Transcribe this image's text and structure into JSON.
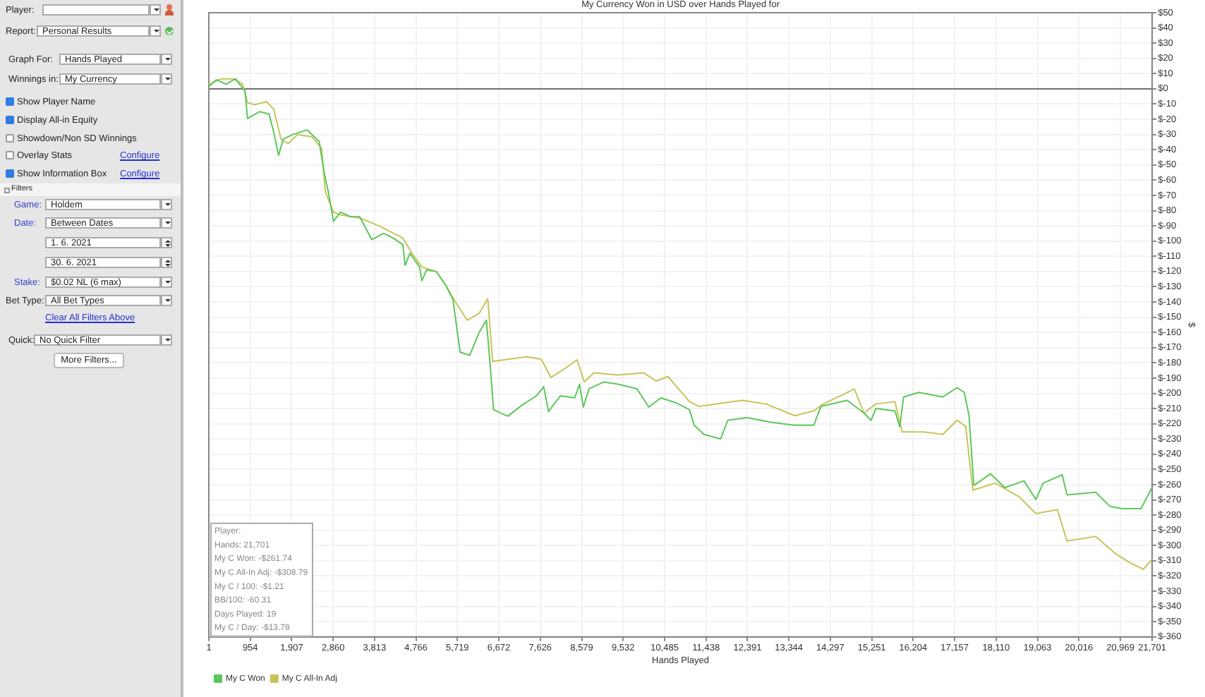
{
  "chart_data": {
    "type": "line",
    "title": "My Currency Won in USD over Hands Played for",
    "xlabel": "Hands Played",
    "ylabel": "$",
    "xlim": [
      1,
      21701
    ],
    "xticks": [
      1,
      954,
      {
        "value": 1907,
        "label": "1,907"
      },
      {
        "value": 2860,
        "label": "2,860"
      },
      {
        "value": 3813,
        "label": "3,813"
      },
      {
        "value": 4766,
        "label": "4,766"
      },
      {
        "value": 5719,
        "label": "5,719"
      },
      {
        "value": 6672,
        "label": "6,672"
      },
      {
        "value": 7626,
        "label": "7,626"
      },
      {
        "value": 8579,
        "label": "8,579"
      },
      {
        "value": 9532,
        "label": "9,532"
      },
      {
        "value": 10485,
        "label": "10,485"
      },
      {
        "value": 11438,
        "label": "11,438"
      },
      {
        "value": 12391,
        "label": "12,391"
      },
      {
        "value": 13344,
        "label": "13,344"
      },
      {
        "value": 14297,
        "label": "14,297"
      },
      {
        "value": 15251,
        "label": "15,251"
      },
      {
        "value": 16204,
        "label": "16,204"
      },
      {
        "value": 17157,
        "label": "17,157"
      },
      {
        "value": 18110,
        "label": "18,110"
      },
      {
        "value": 19063,
        "label": "19,063"
      },
      {
        "value": 20016,
        "label": "20,016"
      },
      {
        "value": 20969,
        "label": "20,969"
      },
      {
        "value": 21701,
        "label": "21,701"
      }
    ],
    "ylim": [
      -360,
      50
    ],
    "yticks": [
      {
        "value": 50,
        "label": "$50"
      },
      {
        "value": 40,
        "label": "$40"
      },
      {
        "value": 30,
        "label": "$30"
      },
      {
        "value": 20,
        "label": "$20"
      },
      {
        "value": 10,
        "label": "$10"
      },
      {
        "value": 0,
        "label": "$0"
      },
      {
        "value": -10,
        "label": "$-10"
      },
      {
        "value": -20,
        "label": "$-20"
      },
      {
        "value": -30,
        "label": "$-30"
      },
      {
        "value": -40,
        "label": "$-40"
      },
      {
        "value": -50,
        "label": "$-50"
      },
      {
        "value": -60,
        "label": "$-60"
      },
      {
        "value": -70,
        "label": "$-70"
      },
      {
        "value": -80,
        "label": "$-80"
      },
      {
        "value": -90,
        "label": "$-90"
      },
      {
        "value": -100,
        "label": "$-100"
      },
      {
        "value": -110,
        "label": "$-110"
      },
      {
        "value": -120,
        "label": "$-120"
      },
      {
        "value": -130,
        "label": "$-130"
      },
      {
        "value": -140,
        "label": "$-140"
      },
      {
        "value": -150,
        "label": "$-150"
      },
      {
        "value": -160,
        "label": "$-160"
      },
      {
        "value": -170,
        "label": "$-170"
      },
      {
        "value": -180,
        "label": "$-180"
      },
      {
        "value": -190,
        "label": "$-190"
      },
      {
        "value": -200,
        "label": "$-200"
      },
      {
        "value": -210,
        "label": "$-210"
      },
      {
        "value": -220,
        "label": "$-220"
      },
      {
        "value": -230,
        "label": "$-230"
      },
      {
        "value": -240,
        "label": "$-240"
      },
      {
        "value": -250,
        "label": "$-250"
      },
      {
        "value": -260,
        "label": "$-260"
      },
      {
        "value": -270,
        "label": "$-270"
      },
      {
        "value": -280,
        "label": "$-280"
      },
      {
        "value": -290,
        "label": "$-290"
      },
      {
        "value": -300,
        "label": "$-300"
      },
      {
        "value": -310,
        "label": "$-310"
      },
      {
        "value": -320,
        "label": "$-320"
      },
      {
        "value": -330,
        "label": "$-330"
      },
      {
        "value": -340,
        "label": "$-340"
      },
      {
        "value": -350,
        "label": "$-350"
      },
      {
        "value": -360,
        "label": "$-360"
      }
    ],
    "grid": true,
    "legend": "bottom",
    "ref_lines": [
      {
        "axis": "y",
        "value": 0,
        "color": "#707070"
      }
    ],
    "series": [
      {
        "name": "My C Won",
        "color": "#5cc85a",
        "x": [
          1,
          176,
          396,
          615,
          725,
          835,
          890,
          1165,
          1385,
          1495,
          1605,
          1714,
          1934,
          2264,
          2539,
          2648,
          2758,
          2868,
          3033,
          3253,
          3473,
          3747,
          4022,
          4242,
          4462,
          4517,
          4627,
          4847,
          4902,
          5011,
          5231,
          5451,
          5616,
          5781,
          6001,
          6220,
          6385,
          6462,
          6550,
          6770,
          6880,
          7209,
          7539,
          7704,
          7814,
          8089,
          8418,
          8528,
          8616,
          8748,
          9078,
          9407,
          9847,
          10122,
          10397,
          10726,
          11056,
          11166,
          11389,
          11773,
          11938,
          12378,
          12927,
          13477,
          13916,
          14081,
          14686,
          15070,
          15235,
          15345,
          15785,
          15895,
          15983,
          16334,
          16884,
          17213,
          17378,
          17488,
          17598,
          17983,
          18312,
          18752,
          19027,
          19192,
          19631,
          19741,
          20400,
          20730,
          21005,
          21444,
          21664,
          21701
        ],
        "values": [
          1.5,
          6,
          3,
          6.6,
          2.4,
          -1.5,
          -19.5,
          -15,
          -16.5,
          -28.6,
          -43.6,
          -33,
          -30,
          -27,
          -34.6,
          -54,
          -69,
          -87,
          -81,
          -84,
          -84,
          -99,
          -95,
          -98,
          -102.3,
          -115.9,
          -108,
          -117,
          -126,
          -119,
          -120,
          -129,
          -138.4,
          -173,
          -175,
          -160,
          -152,
          -177.6,
          -210.7,
          -213.7,
          -215,
          -207.7,
          -201.6,
          -195.6,
          -212,
          -201.6,
          -203,
          -194,
          -209,
          -197,
          -192.6,
          -194,
          -197,
          -209,
          -203,
          -206,
          -210.7,
          -221,
          -227,
          -230,
          -217.7,
          -216,
          -219,
          -221,
          -221,
          -208.6,
          -204.6,
          -213,
          -217.7,
          -210,
          -211.6,
          -222,
          -202.4,
          -199.4,
          -202.4,
          -196.3,
          -199.4,
          -214.7,
          -260.5,
          -252.9,
          -262,
          -257.5,
          -269.7,
          -259,
          -253.5,
          -266.7,
          -265,
          -274.3,
          -275.8,
          -275.8,
          -263.6,
          -261.74
        ]
      },
      {
        "name": "My C All-In Adj",
        "color": "#c8c45a",
        "x": [
          1,
          286,
          560,
          780,
          890,
          1055,
          1330,
          1495,
          1660,
          1824,
          2044,
          2374,
          2594,
          2681,
          2868,
          3033,
          3473,
          3912,
          4462,
          4682,
          4902,
          5231,
          5451,
          5671,
          5946,
          6220,
          6418,
          6528,
          6880,
          7319,
          7649,
          7869,
          8198,
          8473,
          8638,
          8858,
          9407,
          10012,
          10287,
          10562,
          11059,
          11279,
          11828,
          12268,
          12817,
          13477,
          13916,
          14136,
          14851,
          15070,
          15345,
          15785,
          15950,
          16444,
          16884,
          17213,
          17411,
          17576,
          18092,
          18642,
          19027,
          19521,
          19741,
          20400,
          20840,
          21170,
          21499,
          21701
        ],
        "values": [
          3,
          6.6,
          6.6,
          3,
          -9,
          -10.5,
          -8.4,
          -13.5,
          -33,
          -36,
          -30,
          -31.6,
          -39,
          -67.7,
          -81,
          -82.8,
          -84.8,
          -90,
          -98,
          -108.3,
          -117,
          -120,
          -129,
          -140,
          -152,
          -147.5,
          -137.8,
          -179,
          -177.6,
          -176,
          -177.6,
          -189.6,
          -183.6,
          -178,
          -192.6,
          -186.6,
          -188,
          -186.6,
          -192,
          -189,
          -205.5,
          -208.6,
          -206.4,
          -204.6,
          -207,
          -214.7,
          -211.6,
          -207,
          -197.2,
          -213,
          -207,
          -205.5,
          -225.4,
          -225.4,
          -227,
          -217.7,
          -221.7,
          -263.6,
          -259,
          -268,
          -279,
          -276.5,
          -297,
          -294,
          -305,
          -311,
          -315.6,
          -308.79
        ]
      }
    ],
    "annotations": [
      "Player:",
      "Hands: 21,701",
      "My C Won: -$261.74",
      "My C All-In Adj: -$308.79",
      "My C / 100: -$1.21",
      "BB/100: -60.31",
      "Days Played: 19",
      "My C / Day: -$13.78",
      "Player:",
      "Report:",
      "Personal Results",
      "Graph For:",
      "Hands Played",
      "Winnings in:",
      "My Currency",
      "Show Player Name",
      "Display All-in Equity",
      "Showdown/Non SD Winnings",
      "Overlay Stats",
      "Configure",
      "Show Information Box",
      "Configure",
      "Filters",
      "Game:",
      "Holdem",
      "Date:",
      "Between Dates",
      "1. 6. 2021",
      "30. 6. 2021",
      "Stake:",
      "$0.02 NL (6 max)",
      "Bet Type:",
      "All Bet Types",
      "Clear All Filters Above",
      "Quick:",
      "No Quick Filter",
      "More Filters..."
    ]
  }
}
